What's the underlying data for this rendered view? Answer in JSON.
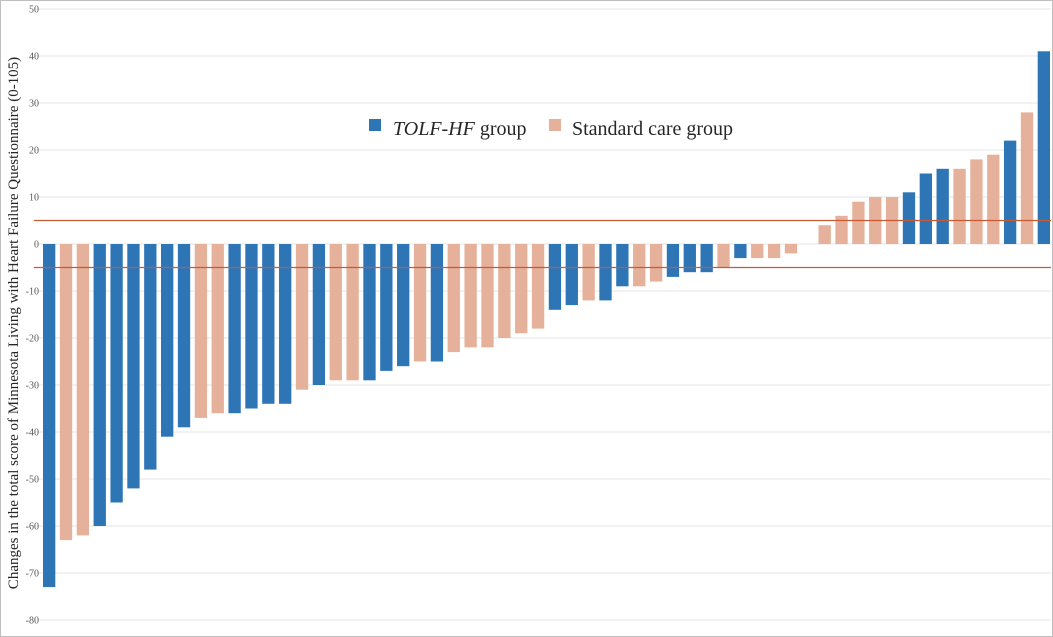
{
  "chart_data": {
    "type": "bar",
    "ylabel": "Changes in the total score of Minnesota Living with Heart Failure Questionnaire (0-105)",
    "ylim": [
      -80,
      50
    ],
    "yticks": [
      50,
      40,
      30,
      20,
      10,
      0,
      -10,
      -20,
      -30,
      -40,
      -50,
      -60,
      -70,
      -80
    ],
    "grid": true,
    "reference_lines": [
      5,
      -5
    ],
    "legend": {
      "position": "top-center",
      "entries": [
        {
          "key": "tolf",
          "name_italic": "TOLF-HF",
          "name_rest": " group",
          "color": "#2e75b6"
        },
        {
          "key": "standard",
          "name_italic": "",
          "name_rest": "Standard care group",
          "color": "#e6b19a"
        }
      ]
    },
    "bars": [
      {
        "group": "tolf",
        "value": -73
      },
      {
        "group": "standard",
        "value": -63
      },
      {
        "group": "standard",
        "value": -62
      },
      {
        "group": "tolf",
        "value": -60
      },
      {
        "group": "tolf",
        "value": -55
      },
      {
        "group": "tolf",
        "value": -52
      },
      {
        "group": "tolf",
        "value": -48
      },
      {
        "group": "tolf",
        "value": -41
      },
      {
        "group": "tolf",
        "value": -39
      },
      {
        "group": "standard",
        "value": -37
      },
      {
        "group": "standard",
        "value": -36
      },
      {
        "group": "tolf",
        "value": -36
      },
      {
        "group": "tolf",
        "value": -35
      },
      {
        "group": "tolf",
        "value": -34
      },
      {
        "group": "tolf",
        "value": -34
      },
      {
        "group": "standard",
        "value": -31
      },
      {
        "group": "tolf",
        "value": -30
      },
      {
        "group": "standard",
        "value": -29
      },
      {
        "group": "standard",
        "value": -29
      },
      {
        "group": "tolf",
        "value": -29
      },
      {
        "group": "tolf",
        "value": -27
      },
      {
        "group": "tolf",
        "value": -26
      },
      {
        "group": "standard",
        "value": -25
      },
      {
        "group": "tolf",
        "value": -25
      },
      {
        "group": "standard",
        "value": -23
      },
      {
        "group": "standard",
        "value": -22
      },
      {
        "group": "standard",
        "value": -22
      },
      {
        "group": "standard",
        "value": -20
      },
      {
        "group": "standard",
        "value": -19
      },
      {
        "group": "standard",
        "value": -18
      },
      {
        "group": "tolf",
        "value": -14
      },
      {
        "group": "tolf",
        "value": -13
      },
      {
        "group": "standard",
        "value": -12
      },
      {
        "group": "tolf",
        "value": -12
      },
      {
        "group": "tolf",
        "value": -9
      },
      {
        "group": "standard",
        "value": -9
      },
      {
        "group": "standard",
        "value": -8
      },
      {
        "group": "tolf",
        "value": -7
      },
      {
        "group": "tolf",
        "value": -6
      },
      {
        "group": "tolf",
        "value": -6
      },
      {
        "group": "standard",
        "value": -5
      },
      {
        "group": "tolf",
        "value": -3
      },
      {
        "group": "standard",
        "value": -3
      },
      {
        "group": "standard",
        "value": -3
      },
      {
        "group": "standard",
        "value": -2
      },
      {
        "group": "standard",
        "value": 0
      },
      {
        "group": "standard",
        "value": 4
      },
      {
        "group": "standard",
        "value": 6
      },
      {
        "group": "standard",
        "value": 9
      },
      {
        "group": "standard",
        "value": 10
      },
      {
        "group": "standard",
        "value": 10
      },
      {
        "group": "tolf",
        "value": 11
      },
      {
        "group": "tolf",
        "value": 15
      },
      {
        "group": "tolf",
        "value": 16
      },
      {
        "group": "standard",
        "value": 16
      },
      {
        "group": "standard",
        "value": 18
      },
      {
        "group": "standard",
        "value": 19
      },
      {
        "group": "tolf",
        "value": 22
      },
      {
        "group": "standard",
        "value": 28
      },
      {
        "group": "tolf",
        "value": 41
      }
    ],
    "reference_line_color": "#c55a35",
    "grid_color": "#e6e6e6"
  }
}
